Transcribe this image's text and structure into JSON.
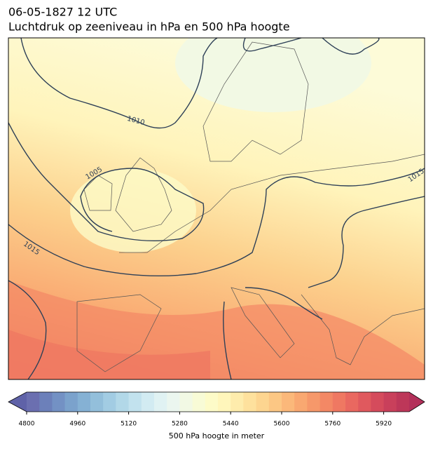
{
  "title": "06-05-1827 12 UTC",
  "subtitle": "Luchtdruk op zeeniveau in hPa en 500 hPa hoogte",
  "map": {
    "contour_labels": [
      "1010",
      "1005",
      "1015",
      "1015"
    ]
  },
  "colorbar": {
    "lim": [
      4800,
      6000
    ],
    "ticks": [
      4800,
      4960,
      5120,
      5280,
      5440,
      5600,
      5760,
      5920
    ],
    "label": "500 hPa hoogte in meter",
    "under_color": "#5f62a8",
    "over_color": "#b3305a",
    "colors": [
      "#6b6fb0",
      "#6c80ba",
      "#7391c4",
      "#7ba2cc",
      "#85b1d4",
      "#93bfdb",
      "#a2cce3",
      "#b2d8e8",
      "#c2e2ee",
      "#d2ebf2",
      "#e0f2f3",
      "#ebf6ef",
      "#f2f9e4",
      "#f8fbd6",
      "#fdfbc8",
      "#fff6bb",
      "#feecac",
      "#fee19d",
      "#fdd590",
      "#fcc784",
      "#fbb87a",
      "#f9a871",
      "#f6986a",
      "#f38865",
      "#ef7862",
      "#e96860",
      "#e0595e",
      "#d54b5c",
      "#c9405b",
      "#bd3759"
    ]
  }
}
